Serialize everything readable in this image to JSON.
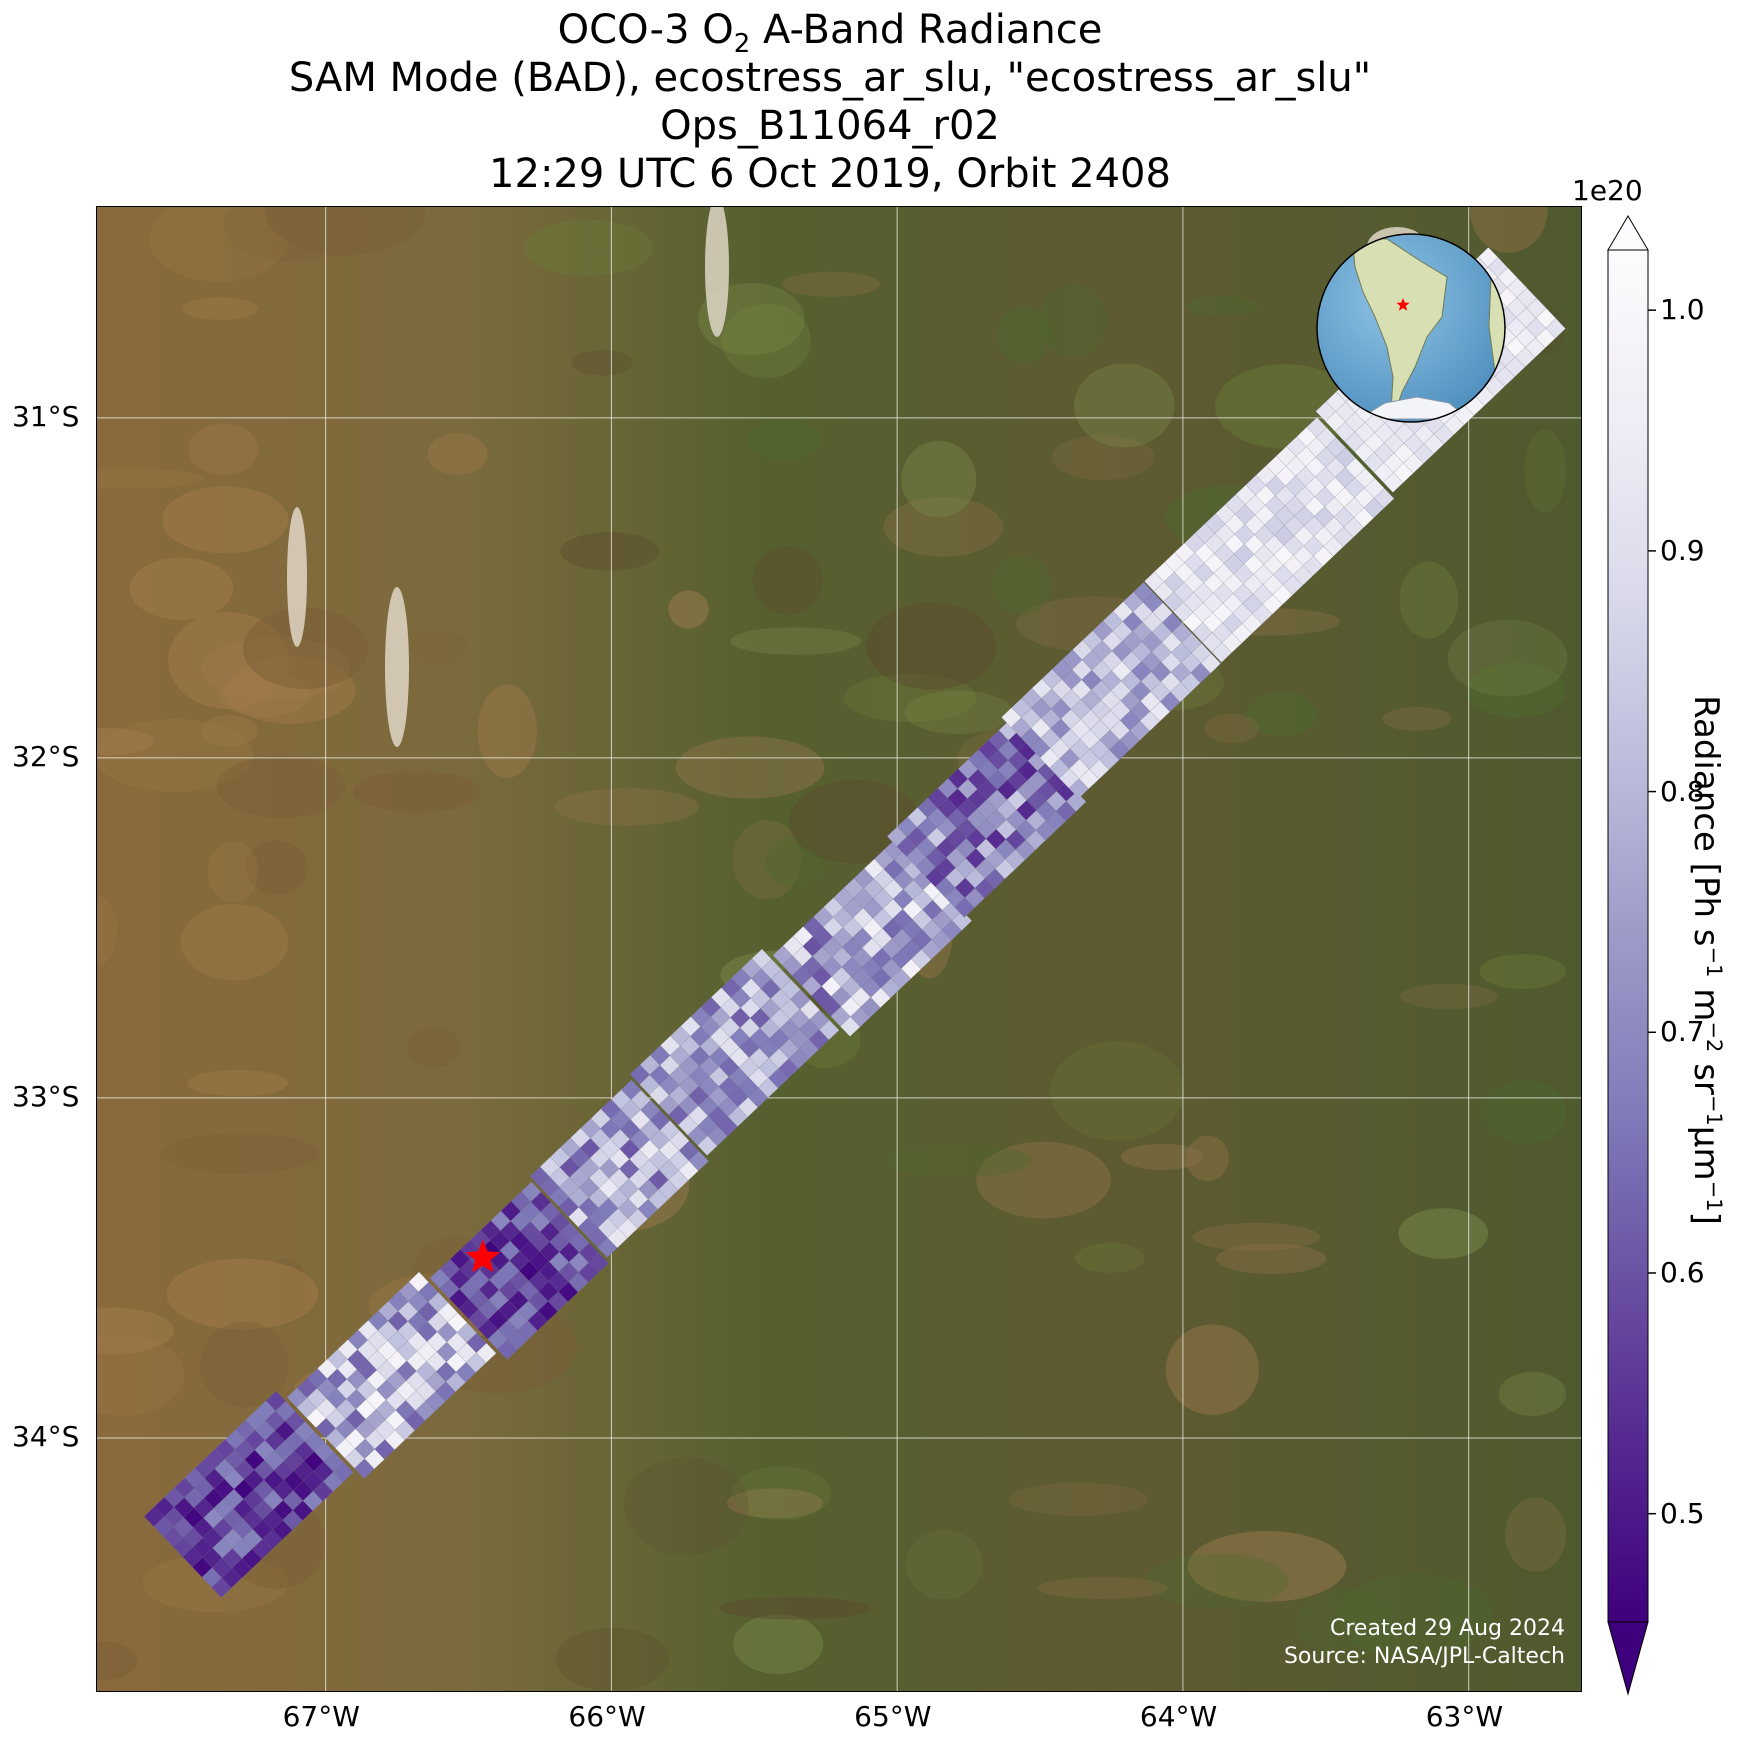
{
  "title": {
    "line1_pre": "OCO-3 O",
    "line1_sub": "2",
    "line1_post": " A-Band Radiance",
    "line2": "SAM Mode (BAD), ecostress_ar_slu, \"ecostress_ar_slu\"",
    "line3": "Ops_B11064_r02",
    "line4": "12:29 UTC 6 Oct 2019, Orbit 2408"
  },
  "map": {
    "lon_range": [
      -67.8,
      -62.6
    ],
    "lat_range": [
      -34.75,
      -30.38
    ],
    "gridlines": true,
    "lon_ticks": [
      {
        "value": -67,
        "label": "67°W"
      },
      {
        "value": -66,
        "label": "66°W"
      },
      {
        "value": -65,
        "label": "65°W"
      },
      {
        "value": -64,
        "label": "64°W"
      },
      {
        "value": -63,
        "label": "63°W"
      }
    ],
    "lat_ticks": [
      {
        "value": -31,
        "label": "31°S"
      },
      {
        "value": -32,
        "label": "32°S"
      },
      {
        "value": -33,
        "label": "33°S"
      },
      {
        "value": -34,
        "label": "34°S"
      }
    ],
    "target_marker": {
      "lon": -66.45,
      "lat": -33.47,
      "color": "#ff0000"
    },
    "inset_globe": {
      "marker_color": "#ff0000",
      "position": "top-right"
    },
    "swath": [
      {
        "lon0": -67.5,
        "lat0": -34.35,
        "lon1": -67.0,
        "lat1": -34.0,
        "min": 0.46,
        "max": 0.7
      },
      {
        "lon0": -67.0,
        "lat0": -34.0,
        "lon1": -66.5,
        "lat1": -33.65,
        "min": 0.62,
        "max": 1.0
      },
      {
        "lon0": -66.5,
        "lat0": -33.65,
        "lon1": -66.15,
        "lat1": -33.35,
        "min": 0.46,
        "max": 0.7
      },
      {
        "lon0": -66.15,
        "lat0": -33.35,
        "lon1": -65.8,
        "lat1": -33.05,
        "min": 0.6,
        "max": 0.95
      },
      {
        "lon0": -65.8,
        "lat0": -33.05,
        "lon1": -65.3,
        "lat1": -32.7,
        "min": 0.62,
        "max": 0.92
      },
      {
        "lon0": -65.3,
        "lat0": -32.7,
        "lon1": -64.9,
        "lat1": -32.35,
        "min": 0.6,
        "max": 0.98
      },
      {
        "lon0": -64.9,
        "lat0": -32.35,
        "lon1": -64.5,
        "lat1": -32.0,
        "min": 0.52,
        "max": 0.85
      },
      {
        "lon0": -64.5,
        "lat0": -32.0,
        "lon1": -64.0,
        "lat1": -31.6,
        "min": 0.68,
        "max": 0.95
      },
      {
        "lon0": -64.0,
        "lat0": -31.6,
        "lon1": -63.4,
        "lat1": -31.1,
        "min": 0.85,
        "max": 1.0
      },
      {
        "lon0": -63.4,
        "lat0": -31.1,
        "lon1": -62.8,
        "lat1": -30.6,
        "min": 0.9,
        "max": 1.0
      }
    ]
  },
  "colorbar": {
    "label_main": "Radiance [Ph s",
    "label_exp1": "−1",
    "label_m": " m",
    "label_exp2": "−2",
    "label_sr": " sr",
    "label_exp3": "−1",
    "label_um": "μm",
    "label_exp4": "−1",
    "label_end": "]",
    "multiplier": "1e20",
    "range": [
      0.455,
      1.025
    ],
    "ticks": [
      "0.5",
      "0.6",
      "0.7",
      "0.8",
      "0.9",
      "1.0"
    ],
    "extend": "both",
    "colormap": "Purples_r",
    "colors": [
      "#3f007d",
      "#54278f",
      "#6a51a3",
      "#807dba",
      "#9e9ac8",
      "#bcbddc",
      "#dadaeb",
      "#efedf5",
      "#fcfbfd"
    ]
  },
  "credits": {
    "created": "Created 29 Aug 2024",
    "source": "Source: NASA/JPL-Caltech"
  }
}
